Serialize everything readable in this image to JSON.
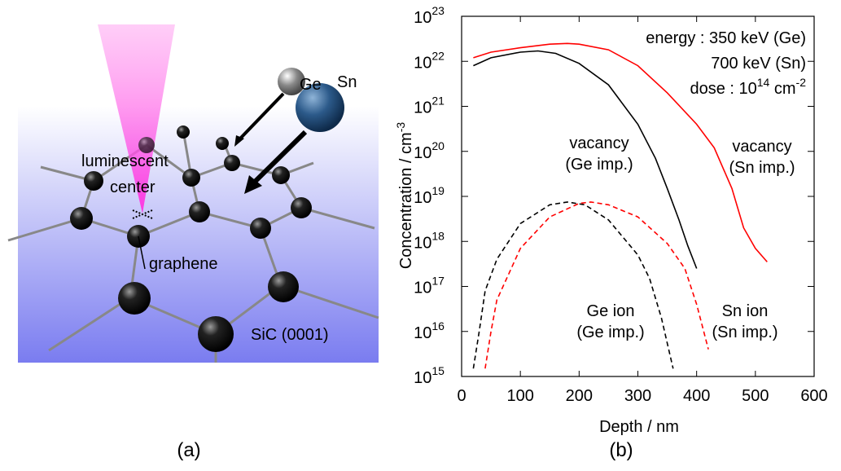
{
  "illustration": {
    "labels": [
      "Ge",
      "Sn",
      "luminescent",
      "center",
      "graphene",
      "SiC (0001)"
    ],
    "panel_label": "(a)"
  },
  "chart_data": {
    "type": "line",
    "panel_label": "(b)",
    "xlabel": "Depth / nm",
    "ylabel": "Concentration / cm",
    "ylabel_exponent": "-3",
    "xlim": [
      0,
      600
    ],
    "xticks": [
      0,
      100,
      200,
      300,
      400,
      500,
      600
    ],
    "ylim": [
      1000000000000000.0,
      1e+23
    ],
    "log_y": true,
    "yticks": [
      {
        "value": 1000000000000000.0,
        "label": "10",
        "exponent": "15"
      },
      {
        "value": 1e+16,
        "label": "10",
        "exponent": "16"
      },
      {
        "value": 1e+17,
        "label": "10",
        "exponent": "17"
      },
      {
        "value": 1e+18,
        "label": "10",
        "exponent": "18"
      },
      {
        "value": 1e+19,
        "label": "10",
        "exponent": "19"
      },
      {
        "value": 1e+20,
        "label": "10",
        "exponent": "20"
      },
      {
        "value": 1e+21,
        "label": "10",
        "exponent": "21"
      },
      {
        "value": 1e+22,
        "label": "10",
        "exponent": "22"
      },
      {
        "value": 1e+23,
        "label": "10",
        "exponent": "23"
      }
    ],
    "annotations": [
      [
        {
          "text": "energy : 350 keV (Ge)"
        }
      ],
      [
        {
          "text": "700 keV (Sn)"
        }
      ],
      [
        {
          "text": "dose : 10"
        },
        {
          "text": "14",
          "sup": true
        },
        {
          "text": " cm"
        },
        {
          "text": "-2",
          "sup": true
        }
      ]
    ],
    "series": [
      {
        "label": [
          "vacancy",
          "(Ge imp.)"
        ],
        "color": "#000000",
        "dashed": false,
        "x": [
          20,
          50,
          100,
          130,
          160,
          200,
          250,
          300,
          330,
          350,
          370,
          385,
          400
        ],
        "values": [
          8e+21,
          1.2e+22,
          1.6e+22,
          1.7e+22,
          1.5e+22,
          9e+21,
          3e+21,
          4e+20,
          7e+19,
          1.5e+19,
          3e+18,
          8e+17,
          2.5e+17
        ]
      },
      {
        "label": [
          "vacancy",
          "(Sn imp.)"
        ],
        "color": "#ff0000",
        "dashed": false,
        "x": [
          20,
          50,
          100,
          150,
          180,
          200,
          250,
          300,
          350,
          400,
          430,
          460,
          480,
          500,
          520
        ],
        "values": [
          1.2e+22,
          1.6e+22,
          2e+22,
          2.4e+22,
          2.5e+22,
          2.4e+22,
          1.8e+22,
          8e+21,
          2e+21,
          4e+20,
          1.2e+20,
          1.5e+19,
          2e+18,
          7e+17,
          3.5e+17
        ]
      },
      {
        "label": [
          "Ge ion",
          "(Ge imp.)"
        ],
        "color": "#000000",
        "dashed": true,
        "x": [
          20,
          30,
          40,
          60,
          100,
          150,
          180,
          210,
          250,
          300,
          320,
          340,
          360
        ],
        "values": [
          1500000000000000.0,
          1e+16,
          8e+16,
          4e+17,
          2.5e+18,
          6.5e+18,
          7.5e+18,
          6.5e+18,
          3e+18,
          5e+17,
          1.5e+17,
          2e+16,
          1500000000000000.0
        ]
      },
      {
        "label": [
          "Sn ion",
          "(Sn imp.)"
        ],
        "color": "#ff0000",
        "dashed": true,
        "x": [
          40,
          50,
          60,
          100,
          150,
          200,
          220,
          250,
          300,
          350,
          380,
          400,
          420
        ],
        "values": [
          1500000000000000.0,
          1e+16,
          5e+16,
          7e+17,
          3.5e+18,
          7e+18,
          7.5e+18,
          6.5e+18,
          3.5e+18,
          9e+17,
          2.5e+17,
          4e+16,
          4000000000000000.0
        ]
      }
    ]
  }
}
